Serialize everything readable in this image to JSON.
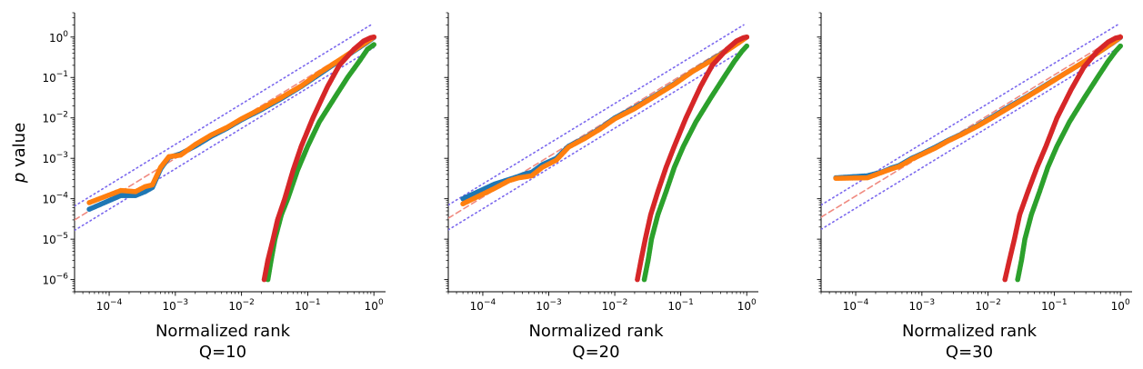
{
  "chart_data": [
    {
      "type": "scatter",
      "title": "",
      "xlabel": "Normalized rank",
      "subtitle": "Q=10",
      "ylabel": "p value",
      "x_scale": "log",
      "y_scale": "log",
      "xlim": [
        3e-05,
        1.5
      ],
      "ylim": [
        5e-07,
        4
      ],
      "x_ticks": [
        "10^-4",
        "10^-3",
        "10^-2",
        "10^-1",
        "10^0"
      ],
      "y_ticks": [
        "10^-6",
        "10^-5",
        "10^-4",
        "10^-3",
        "10^-2",
        "10^-1",
        "10^0"
      ],
      "reference_lines": [
        {
          "style": "dashed",
          "color": "#f08a80",
          "x": [
            3e-05,
            1.0
          ],
          "y": [
            3e-05,
            1.0
          ]
        },
        {
          "style": "dotted",
          "color": "#7b68ee",
          "x": [
            3e-05,
            0.9
          ],
          "y": [
            6.6e-05,
            2.0
          ]
        },
        {
          "style": "dotted",
          "color": "#7b68ee",
          "x": [
            3e-05,
            1.0
          ],
          "y": [
            1.65e-05,
            0.55
          ]
        }
      ],
      "series": [
        {
          "color": "#1f77b4",
          "x": [
            5e-05,
            0.00015,
            0.00025,
            0.00035,
            0.00045,
            0.0006,
            0.0008,
            0.0012,
            0.002,
            0.0035,
            0.006,
            0.01,
            0.02,
            0.04,
            0.08,
            0.15,
            0.3,
            0.5,
            0.8,
            1.0
          ],
          "y": [
            5.5e-05,
            0.00012,
            0.00012,
            0.00015,
            0.00019,
            0.00055,
            0.00105,
            0.0013,
            0.002,
            0.0035,
            0.0055,
            0.009,
            0.016,
            0.03,
            0.06,
            0.12,
            0.26,
            0.45,
            0.75,
            0.98
          ]
        },
        {
          "color": "#ff7f0e",
          "x": [
            5e-05,
            0.00015,
            0.00025,
            0.00035,
            0.00045,
            0.0006,
            0.0008,
            0.0012,
            0.002,
            0.0035,
            0.006,
            0.01,
            0.02,
            0.04,
            0.08,
            0.15,
            0.3,
            0.5,
            0.8,
            1.0
          ],
          "y": [
            8e-05,
            0.00016,
            0.00015,
            0.0002,
            0.00022,
            0.0006,
            0.0011,
            0.0012,
            0.0022,
            0.0038,
            0.0058,
            0.0095,
            0.017,
            0.032,
            0.062,
            0.13,
            0.27,
            0.47,
            0.78,
            1.0
          ]
        },
        {
          "color": "#2ca02c",
          "x": [
            0.025,
            0.028,
            0.032,
            0.04,
            0.05,
            0.07,
            0.1,
            0.15,
            0.25,
            0.4,
            0.6,
            0.8,
            1.0
          ],
          "y": [
            1e-06,
            3e-06,
            1e-05,
            4e-05,
            0.0001,
            0.0005,
            0.002,
            0.008,
            0.03,
            0.1,
            0.25,
            0.5,
            0.65
          ]
        },
        {
          "color": "#d62728",
          "x": [
            0.022,
            0.025,
            0.03,
            0.035,
            0.045,
            0.06,
            0.08,
            0.12,
            0.2,
            0.3,
            0.5,
            0.7,
            0.9,
            1.0
          ],
          "y": [
            1e-06,
            3e-06,
            1e-05,
            3e-05,
            0.0001,
            0.0005,
            0.002,
            0.01,
            0.06,
            0.2,
            0.5,
            0.8,
            0.97,
            1.0
          ]
        }
      ]
    },
    {
      "type": "scatter",
      "title": "",
      "xlabel": "Normalized rank",
      "subtitle": "Q=20",
      "ylabel": "",
      "x_scale": "log",
      "y_scale": "log",
      "xlim": [
        3e-05,
        1.5
      ],
      "ylim": [
        5e-07,
        4
      ],
      "x_ticks": [
        "10^-4",
        "10^-3",
        "10^-2",
        "10^-1",
        "10^0"
      ],
      "y_ticks": [],
      "reference_lines": [
        {
          "style": "dashed",
          "color": "#f08a80",
          "x": [
            3e-05,
            1.0
          ],
          "y": [
            3.3e-05,
            1.1
          ]
        },
        {
          "style": "dotted",
          "color": "#7b68ee",
          "x": [
            3e-05,
            0.9
          ],
          "y": [
            7e-05,
            2.0
          ]
        },
        {
          "style": "dotted",
          "color": "#7b68ee",
          "x": [
            3e-05,
            1.0
          ],
          "y": [
            1.7e-05,
            0.55
          ]
        }
      ],
      "series": [
        {
          "color": "#1f77b4",
          "x": [
            5e-05,
            0.00015,
            0.00025,
            0.00035,
            0.00045,
            0.00055,
            0.0008,
            0.0013,
            0.002,
            0.0035,
            0.006,
            0.01,
            0.02,
            0.04,
            0.08,
            0.15,
            0.3,
            0.5,
            0.8,
            1.0
          ],
          "y": [
            0.0001,
            0.00023,
            0.0003,
            0.00036,
            0.00042,
            0.00045,
            0.0007,
            0.001,
            0.002,
            0.0032,
            0.0055,
            0.01,
            0.018,
            0.035,
            0.07,
            0.14,
            0.28,
            0.47,
            0.78,
            1.0
          ]
        },
        {
          "color": "#ff7f0e",
          "x": [
            5e-05,
            0.00015,
            0.00025,
            0.00035,
            0.00045,
            0.00055,
            0.0008,
            0.0013,
            0.002,
            0.0035,
            0.006,
            0.01,
            0.02,
            0.04,
            0.08,
            0.15,
            0.3,
            0.5,
            0.8,
            1.0
          ],
          "y": [
            7.5e-05,
            0.00018,
            0.00028,
            0.00033,
            0.00035,
            0.00037,
            0.0006,
            0.0009,
            0.0019,
            0.0031,
            0.0053,
            0.0095,
            0.017,
            0.034,
            0.068,
            0.14,
            0.27,
            0.46,
            0.77,
            1.0
          ]
        },
        {
          "color": "#2ca02c",
          "x": [
            0.028,
            0.032,
            0.036,
            0.045,
            0.06,
            0.08,
            0.11,
            0.17,
            0.28,
            0.45,
            0.65,
            0.85,
            1.0
          ],
          "y": [
            1e-06,
            3e-06,
            1e-05,
            4e-05,
            0.00015,
            0.0006,
            0.002,
            0.008,
            0.03,
            0.1,
            0.25,
            0.45,
            0.6
          ]
        },
        {
          "color": "#d62728",
          "x": [
            0.022,
            0.025,
            0.029,
            0.035,
            0.045,
            0.06,
            0.08,
            0.12,
            0.2,
            0.3,
            0.5,
            0.7,
            0.9,
            1.0
          ],
          "y": [
            1e-06,
            3e-06,
            1e-05,
            4e-05,
            0.00015,
            0.0006,
            0.002,
            0.01,
            0.06,
            0.2,
            0.5,
            0.8,
            0.97,
            1.0
          ]
        }
      ]
    },
    {
      "type": "scatter",
      "title": "",
      "xlabel": "Normalized rank",
      "subtitle": "Q=30",
      "ylabel": "",
      "x_scale": "log",
      "y_scale": "log",
      "xlim": [
        3e-05,
        1.5
      ],
      "ylim": [
        5e-07,
        4
      ],
      "x_ticks": [
        "10^-4",
        "10^-3",
        "10^-2",
        "10^-1",
        "10^0"
      ],
      "y_ticks": [],
      "reference_lines": [
        {
          "style": "dashed",
          "color": "#f08a80",
          "x": [
            3e-05,
            1.0
          ],
          "y": [
            3.5e-05,
            1.15
          ]
        },
        {
          "style": "dotted",
          "color": "#7b68ee",
          "x": [
            3e-05,
            0.9
          ],
          "y": [
            7e-05,
            2.0
          ]
        },
        {
          "style": "dotted",
          "color": "#7b68ee",
          "x": [
            3e-05,
            1.0
          ],
          "y": [
            1.75e-05,
            0.58
          ]
        }
      ],
      "series": [
        {
          "color": "#1f77b4",
          "x": [
            5e-05,
            0.00015,
            0.00025,
            0.00035,
            0.00045,
            0.00055,
            0.0007,
            0.001,
            0.0016,
            0.0025,
            0.004,
            0.007,
            0.012,
            0.022,
            0.04,
            0.08,
            0.15,
            0.3,
            0.5,
            0.8,
            1.0
          ],
          "y": [
            0.00033,
            0.00037,
            0.00046,
            0.00058,
            0.00066,
            0.0008,
            0.001,
            0.0013,
            0.0019,
            0.0028,
            0.004,
            0.0065,
            0.011,
            0.02,
            0.035,
            0.07,
            0.13,
            0.26,
            0.45,
            0.75,
            0.98
          ]
        },
        {
          "color": "#ff7f0e",
          "x": [
            5e-05,
            0.00015,
            0.00025,
            0.00035,
            0.00045,
            0.00055,
            0.0007,
            0.001,
            0.0016,
            0.0025,
            0.004,
            0.007,
            0.012,
            0.022,
            0.04,
            0.08,
            0.15,
            0.3,
            0.5,
            0.8,
            1.0
          ],
          "y": [
            0.00032,
            0.00033,
            0.00045,
            0.00055,
            0.00063,
            0.00075,
            0.00095,
            0.00125,
            0.0018,
            0.0027,
            0.0039,
            0.0063,
            0.0105,
            0.019,
            0.034,
            0.068,
            0.13,
            0.26,
            0.45,
            0.76,
            1.0
          ]
        },
        {
          "color": "#2ca02c",
          "x": [
            0.028,
            0.032,
            0.036,
            0.045,
            0.06,
            0.08,
            0.11,
            0.17,
            0.28,
            0.45,
            0.65,
            0.85,
            1.0
          ],
          "y": [
            1e-06,
            3e-06,
            1e-05,
            4e-05,
            0.00015,
            0.0006,
            0.002,
            0.008,
            0.03,
            0.1,
            0.25,
            0.45,
            0.6
          ]
        },
        {
          "color": "#d62728",
          "x": [
            0.018,
            0.021,
            0.025,
            0.03,
            0.04,
            0.055,
            0.075,
            0.11,
            0.18,
            0.28,
            0.45,
            0.65,
            0.85,
            1.0
          ],
          "y": [
            1e-06,
            3e-06,
            1e-05,
            4e-05,
            0.00015,
            0.0006,
            0.002,
            0.01,
            0.05,
            0.18,
            0.45,
            0.75,
            0.95,
            1.0
          ]
        }
      ]
    }
  ]
}
